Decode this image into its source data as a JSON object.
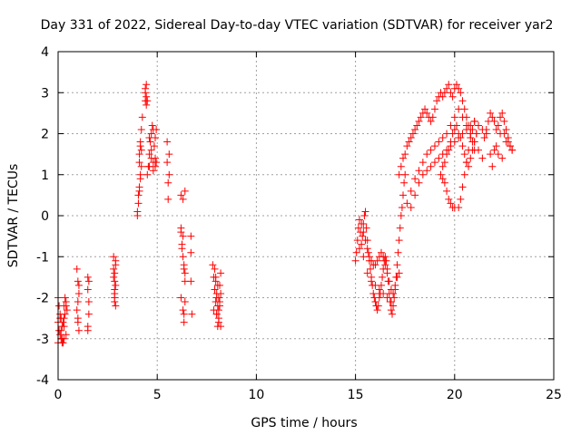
{
  "chart_data": {
    "type": "scatter",
    "title": "Day 331 of 2022, Sidereal Day-to-day VTEC variation (SDTVAR) for receiver yar2",
    "xlabel": "GPS time / hours",
    "ylabel": "SDTVAR / TECUs",
    "xlim": [
      0,
      25
    ],
    "ylim": [
      -4,
      4
    ],
    "xticks": [
      0,
      5,
      10,
      15,
      20,
      25
    ],
    "yticks": [
      -4,
      -3,
      -2,
      -1,
      0,
      1,
      2,
      3,
      4
    ],
    "grid": true,
    "marker": "+",
    "marker_color": "#ff0000",
    "series": [
      {
        "x": [
          0.0,
          0.05,
          0.1,
          0.15,
          0.2,
          0.25,
          0.3,
          0.35,
          0.4,
          0.45,
          0.0,
          0.1,
          0.2,
          0.3,
          0.4,
          0.05,
          0.15,
          0.25,
          0.35,
          0.1,
          0.2,
          0.3,
          0.0,
          0.15,
          0.3,
          0.4,
          0.95,
          1.0,
          1.05,
          0.95,
          1.0,
          1.05,
          1.0,
          1.05,
          1.0,
          1.5,
          1.5,
          1.55,
          1.55,
          1.5,
          1.5,
          1.55,
          2.8,
          2.8,
          2.85,
          2.85,
          2.9,
          2.9,
          2.8,
          2.85,
          2.85,
          2.9,
          2.85,
          2.9,
          2.85,
          4.0,
          4.05,
          4.1,
          4.15,
          4.2,
          4.1,
          4.15,
          4.2,
          4.25,
          4.2,
          4.05,
          4.1,
          4.15,
          4.0,
          4.1,
          4.15,
          4.4,
          4.4,
          4.45,
          4.45,
          4.5,
          4.4,
          4.45,
          4.55,
          4.6,
          4.65,
          4.7,
          4.75,
          4.8,
          4.85,
          4.9,
          4.95,
          4.6,
          4.7,
          4.8,
          4.9,
          4.95,
          4.5,
          4.6,
          4.7,
          4.8,
          4.9,
          5.5,
          5.5,
          5.55,
          5.55,
          5.6,
          5.6,
          6.2,
          6.25,
          6.3,
          6.35,
          6.4,
          6.2,
          6.3,
          6.35,
          6.4,
          6.2,
          6.3,
          6.4,
          6.25,
          6.35,
          6.2,
          6.3,
          6.4,
          6.35,
          6.7,
          6.7,
          6.7,
          6.75,
          7.8,
          7.85,
          7.9,
          7.95,
          8.0,
          8.05,
          8.1,
          8.15,
          8.2,
          7.85,
          7.9,
          7.95,
          8.0,
          8.05,
          8.1,
          7.9,
          8.0,
          8.1,
          7.95,
          8.05,
          8.15,
          8.0,
          8.1,
          8.2,
          8.15,
          8.2,
          15.0,
          15.05,
          15.1,
          15.15,
          15.2,
          15.25,
          15.3,
          15.35,
          15.4,
          15.45,
          15.5,
          15.55,
          15.6,
          15.65,
          15.7,
          15.75,
          15.8,
          15.85,
          15.9,
          15.95,
          16.0,
          16.05,
          16.1,
          16.15,
          16.2,
          16.25,
          16.3,
          16.35,
          16.4,
          16.45,
          16.5,
          16.55,
          16.6,
          16.65,
          16.7,
          16.75,
          16.8,
          16.85,
          16.9,
          16.95,
          17.0,
          17.05,
          17.1,
          17.15,
          17.2,
          17.25,
          17.3,
          17.35,
          17.4,
          17.45,
          17.5,
          15.3,
          15.4,
          15.5,
          15.6,
          15.7,
          15.8,
          15.9,
          16.0,
          16.1,
          16.2,
          16.3,
          16.4,
          16.5,
          16.6,
          16.7,
          16.8,
          16.9,
          17.0,
          17.1,
          17.2,
          15.2,
          15.4,
          15.6,
          15.8,
          16.0,
          16.2,
          16.4,
          16.6,
          16.8,
          17.2,
          17.3,
          17.4,
          17.5,
          17.6,
          17.7,
          17.8,
          17.9,
          18.0,
          18.1,
          18.2,
          18.3,
          18.4,
          18.5,
          18.6,
          18.7,
          18.8,
          18.9,
          19.0,
          19.1,
          19.2,
          19.3,
          19.4,
          19.5,
          19.6,
          19.7,
          19.8,
          19.9,
          20.0,
          20.1,
          20.2,
          20.3,
          20.4,
          20.5,
          20.6,
          20.7,
          20.8,
          20.9,
          21.0,
          17.6,
          17.8,
          18.0,
          18.2,
          18.4,
          18.6,
          18.8,
          19.0,
          19.2,
          19.4,
          19.6,
          19.8,
          20.0,
          20.2,
          20.4,
          20.6,
          20.8,
          21.0,
          21.2,
          21.4,
          17.8,
          18.0,
          18.2,
          18.4,
          18.6,
          18.8,
          19.0,
          19.2,
          19.4,
          19.6,
          19.8,
          20.0,
          20.2,
          20.4,
          20.6,
          20.8,
          21.0,
          21.2,
          21.4,
          21.6,
          19.3,
          19.4,
          19.5,
          19.6,
          19.7,
          19.8,
          19.9,
          20.0,
          20.1,
          20.2,
          20.3,
          20.4,
          20.5,
          20.6,
          20.7,
          20.8,
          20.9,
          21.0,
          21.1,
          21.2,
          19.4,
          19.5,
          19.6,
          19.7,
          19.8,
          19.9,
          20.0,
          20.2,
          20.3,
          20.4,
          20.5,
          20.6,
          20.7,
          20.8,
          20.9,
          21.0,
          21.1,
          21.5,
          21.6,
          21.7,
          21.8,
          21.9,
          22.0,
          22.1,
          22.2,
          22.3,
          22.4,
          22.5,
          22.6,
          22.7,
          22.8,
          22.9,
          21.8,
          22.0,
          22.2,
          22.4,
          22.6,
          22.8,
          21.9,
          22.1,
          22.3,
          22.5,
          22.7,
          22.9
        ],
        "y": [
          -2.0,
          -2.2,
          -2.5,
          -2.8,
          -3.0,
          -3.1,
          -2.7,
          -2.4,
          -2.1,
          -2.3,
          -2.6,
          -2.9,
          -3.1,
          -2.5,
          -2.2,
          -2.8,
          -3.0,
          -2.6,
          -2.0,
          -2.4,
          -2.7,
          -3.0,
          -3.1,
          -2.5,
          -2.2,
          -2.9,
          -1.3,
          -1.6,
          -1.9,
          -2.3,
          -2.6,
          -2.8,
          -2.5,
          -1.7,
          -2.1,
          -1.5,
          -1.8,
          -2.1,
          -2.4,
          -2.7,
          -2.8,
          -1.6,
          -1.0,
          -1.3,
          -1.6,
          -1.9,
          -2.2,
          -1.1,
          -1.5,
          -1.8,
          -2.0,
          -1.2,
          -1.4,
          -1.7,
          -2.1,
          0.0,
          0.3,
          0.6,
          0.9,
          1.2,
          1.5,
          1.8,
          2.1,
          2.4,
          1.6,
          0.5,
          0.7,
          1.0,
          0.1,
          1.3,
          1.7,
          2.8,
          3.0,
          3.2,
          2.9,
          2.8,
          3.1,
          2.7,
          1.2,
          1.5,
          1.8,
          2.0,
          2.2,
          2.1,
          1.7,
          1.4,
          1.3,
          1.9,
          1.6,
          1.3,
          1.9,
          2.1,
          1.0,
          1.2,
          1.4,
          1.1,
          1.2,
          1.8,
          1.3,
          0.8,
          0.4,
          1.5,
          1.0,
          -0.4,
          -0.7,
          -1.0,
          -1.3,
          -1.6,
          -2.0,
          -2.3,
          -2.6,
          -2.1,
          0.5,
          0.4,
          0.6,
          -0.8,
          -1.2,
          -0.3,
          -0.5,
          -1.4,
          -2.4,
          -0.5,
          -0.9,
          -1.6,
          -2.4,
          -1.2,
          -1.5,
          -1.8,
          -2.1,
          -2.4,
          -2.7,
          -2.0,
          -1.7,
          -1.4,
          -2.3,
          -1.3,
          -1.6,
          -1.9,
          -2.2,
          -2.5,
          -1.8,
          -2.0,
          -2.3,
          -1.5,
          -1.7,
          -2.1,
          -2.4,
          -2.6,
          -1.9,
          -2.2,
          -2.7,
          -1.1,
          -0.9,
          -0.6,
          -0.3,
          -0.1,
          -0.4,
          -0.7,
          -0.5,
          -0.2,
          0.0,
          0.1,
          -0.3,
          -0.6,
          -0.9,
          -1.1,
          -1.3,
          -1.5,
          -1.7,
          -1.9,
          -2.0,
          -2.1,
          -2.2,
          -2.3,
          -2.2,
          -2.0,
          -1.9,
          -1.7,
          -1.5,
          -1.3,
          -1.1,
          -1.0,
          -1.1,
          -1.3,
          -1.6,
          -1.9,
          -2.1,
          -2.3,
          -2.4,
          -2.2,
          -2.0,
          -1.8,
          -1.5,
          -1.2,
          -0.9,
          -0.6,
          -0.3,
          0.0,
          0.2,
          0.5,
          0.8,
          1.0,
          -0.2,
          -0.4,
          -0.6,
          -0.8,
          -1.0,
          -1.1,
          -1.2,
          -1.2,
          -1.1,
          -1.0,
          -0.9,
          -1.0,
          -1.2,
          -1.4,
          -1.6,
          -1.8,
          -1.9,
          -1.7,
          -1.5,
          -1.4,
          -0.8,
          -1.0,
          -1.4,
          -1.6,
          -1.7,
          -1.8,
          -1.9,
          -2.0,
          -2.1,
          1.0,
          1.2,
          1.4,
          1.5,
          1.7,
          1.8,
          1.9,
          2.0,
          2.1,
          2.2,
          2.3,
          2.4,
          2.5,
          2.6,
          2.5,
          2.4,
          2.3,
          2.4,
          2.6,
          2.8,
          2.9,
          3.0,
          2.9,
          3.0,
          3.1,
          3.2,
          3.0,
          2.9,
          3.1,
          3.2,
          3.1,
          3.0,
          2.8,
          2.6,
          2.4,
          2.2,
          2.0,
          1.8,
          1.6,
          0.3,
          0.6,
          0.9,
          1.1,
          1.3,
          1.5,
          1.6,
          1.7,
          1.8,
          1.9,
          2.0,
          2.2,
          2.4,
          2.6,
          2.4,
          2.2,
          2.0,
          1.8,
          1.6,
          1.4,
          0.2,
          0.5,
          0.8,
          1.0,
          1.1,
          1.2,
          1.3,
          1.4,
          1.5,
          1.6,
          1.7,
          1.8,
          1.9,
          2.0,
          2.1,
          2.2,
          2.3,
          2.2,
          2.1,
          2.0,
          1.0,
          1.2,
          1.3,
          1.5,
          1.6,
          1.8,
          2.0,
          2.1,
          2.2,
          2.0,
          1.9,
          1.7,
          1.5,
          1.3,
          1.2,
          1.4,
          1.6,
          1.8,
          2.0,
          2.2,
          0.9,
          0.8,
          0.6,
          0.4,
          0.3,
          0.2,
          0.2,
          0.2,
          0.4,
          0.7,
          1.0,
          1.3,
          1.6,
          1.9,
          2.1,
          2.3,
          2.0,
          1.9,
          2.1,
          2.3,
          2.5,
          2.4,
          2.3,
          2.1,
          2.2,
          2.4,
          2.5,
          2.3,
          2.1,
          1.9,
          1.7,
          1.6,
          1.5,
          1.6,
          1.5,
          1.4,
          1.8,
          1.7,
          1.2,
          1.7,
          2.0,
          2.0,
          1.8,
          1.6
        ]
      }
    ]
  }
}
